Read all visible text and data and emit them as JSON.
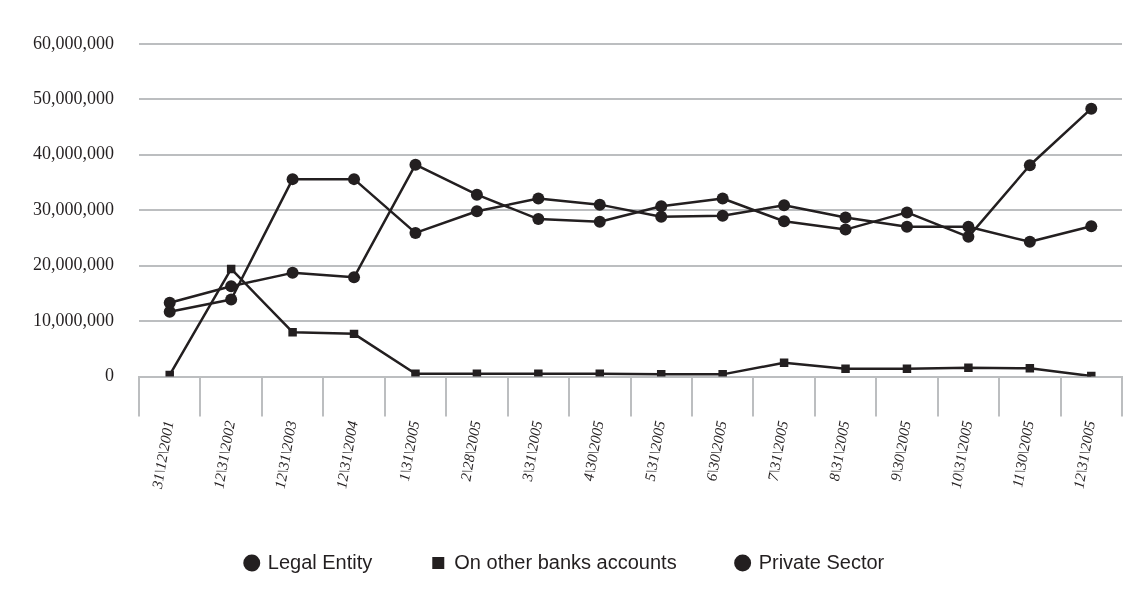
{
  "chart_data": {
    "type": "line",
    "categories": [
      "31\\12\\2001",
      "12\\31\\2002",
      "12\\31\\2003",
      "12\\31\\2004",
      "1\\31\\2005",
      "2\\28\\2005",
      "3\\31\\2005",
      "4\\30\\2005",
      "5\\31\\2005",
      "6\\30\\2005",
      "7\\31\\2005",
      "8\\31\\2005",
      "9\\30\\2005",
      "10\\31\\2005",
      "11\\30\\2005",
      "12\\31\\2005"
    ],
    "series": [
      {
        "name": "Legal Entity",
        "color": "#231f20",
        "marker": "circle",
        "values": [
          13300000,
          16300000,
          18700000,
          17900000,
          38200000,
          32800000,
          28400000,
          27900000,
          30700000,
          32100000,
          28000000,
          26500000,
          29600000,
          25200000,
          38100000,
          48300000
        ]
      },
      {
        "name": "On other banks accounts",
        "color": "#231f20",
        "marker": "square",
        "values": [
          300000,
          19400000,
          8000000,
          7700000,
          500000,
          500000,
          500000,
          500000,
          400000,
          400000,
          2500000,
          1400000,
          1400000,
          1600000,
          1500000,
          100000
        ]
      },
      {
        "name": "Private Sector",
        "color": "#231f20",
        "marker": "circle",
        "values": [
          11700000,
          13900000,
          35600000,
          35600000,
          25900000,
          29800000,
          32100000,
          31000000,
          28800000,
          29000000,
          30900000,
          28700000,
          27000000,
          27000000,
          24300000,
          27100000
        ]
      }
    ],
    "ylim": [
      0,
      60000000
    ],
    "yticks": [
      0,
      {
        "value": 10000000,
        "label": "10,000,000"
      },
      {
        "value": 20000000,
        "label": "20,000,000"
      },
      {
        "value": 30000000,
        "label": "30,000,000"
      },
      {
        "value": 40000000,
        "label": "40,000,000"
      },
      {
        "value": 50000000,
        "label": "50,000,000"
      },
      {
        "value": 60000000,
        "label": "60,000,000"
      }
    ],
    "grid": "y",
    "legend": "bottom",
    "line_style": "solid"
  }
}
